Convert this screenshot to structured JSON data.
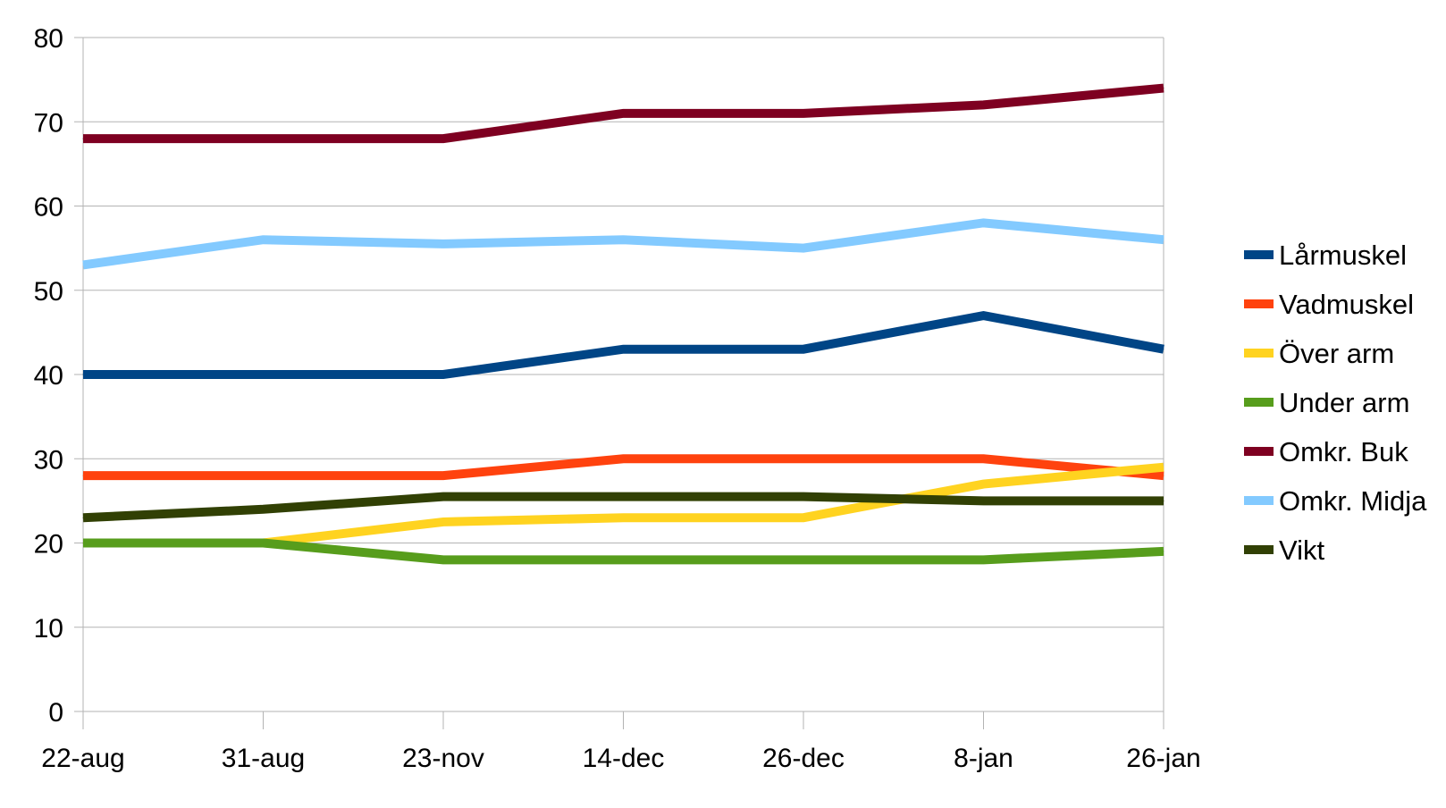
{
  "chart_data": {
    "type": "line",
    "title": "",
    "xlabel": "",
    "ylabel": "",
    "categories": [
      "22-aug",
      "31-aug",
      "23-nov",
      "14-dec",
      "26-dec",
      "8-jan",
      "26-jan"
    ],
    "ylim": [
      0,
      80
    ],
    "yticks": [
      0,
      10,
      20,
      30,
      40,
      50,
      60,
      70,
      80
    ],
    "grid": "horizontal",
    "legend_position": "right",
    "series": [
      {
        "name": "Lårmuskel",
        "color": "#004586",
        "values": [
          40,
          40,
          40,
          43,
          43,
          47,
          43
        ]
      },
      {
        "name": "Vadmuskel",
        "color": "#ff420e",
        "values": [
          28,
          28,
          28,
          30,
          30,
          30,
          28
        ]
      },
      {
        "name": "Över arm",
        "color": "#ffd320",
        "values": [
          20,
          20,
          22.5,
          23,
          23,
          27,
          29
        ]
      },
      {
        "name": "Under arm",
        "color": "#579d1c",
        "values": [
          20,
          20,
          18,
          18,
          18,
          18,
          19
        ]
      },
      {
        "name": "Omkr. Buk",
        "color": "#7e0021",
        "values": [
          68,
          68,
          68,
          71,
          71,
          72,
          74
        ]
      },
      {
        "name": "Omkr. Midja",
        "color": "#83caff",
        "values": [
          53,
          56,
          55.5,
          56,
          55,
          58,
          56
        ]
      },
      {
        "name": "Vikt",
        "color": "#314004",
        "values": [
          23,
          24,
          25.5,
          25.5,
          25.5,
          25,
          25
        ]
      }
    ]
  }
}
